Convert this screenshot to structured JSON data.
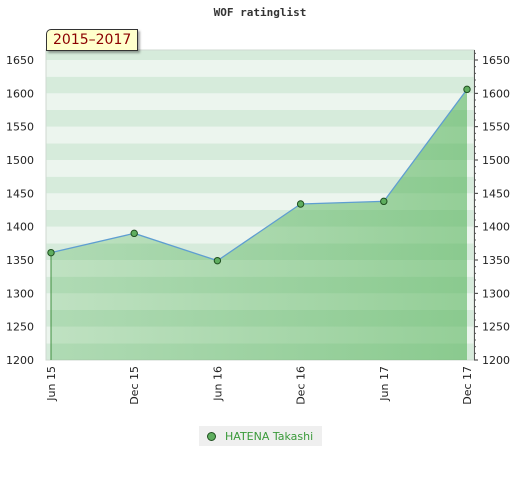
{
  "chart_data": {
    "type": "area",
    "title": "WOF ratinglist",
    "range_label": "2015–2017",
    "categories": [
      "Jun 15",
      "Dec 15",
      "Jun 16",
      "Dec 16",
      "Jun 17",
      "Dec 17"
    ],
    "series": [
      {
        "name": "HATENA Takashi",
        "values": [
          1361,
          1390,
          1349,
          1434,
          1438,
          1606
        ]
      }
    ],
    "y_ticks": [
      1200,
      1250,
      1300,
      1350,
      1400,
      1450,
      1500,
      1550,
      1600,
      1650
    ],
    "ylim": [
      1200,
      1665
    ],
    "grid": true,
    "legend_position": "bottom-center",
    "colors": {
      "line": "#5f9ed1",
      "marker_fill": "#5fae5f",
      "marker_stroke": "#1f4f1f",
      "area_fill": "#4caf50",
      "band_light": "#ecf5ee",
      "band_dark": "#d6ebdb"
    }
  }
}
